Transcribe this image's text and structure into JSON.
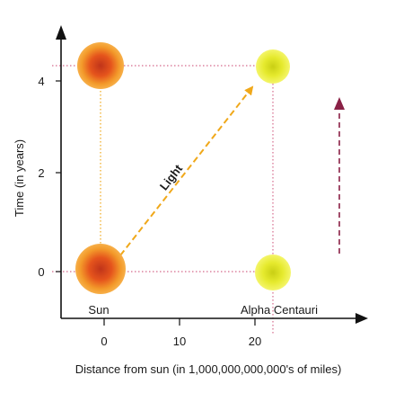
{
  "diagram": {
    "x_axis_title": "Distance from sun (in 1,000,000,000,000's of miles)",
    "y_axis_title": "Time (in years)",
    "x_ticks": [
      "0",
      "10",
      "20"
    ],
    "y_ticks": [
      "0",
      "2",
      "4"
    ],
    "labels": {
      "sun": "Sun",
      "alpha_centauri": "Alpha Centauri",
      "light": "Light"
    }
  }
}
